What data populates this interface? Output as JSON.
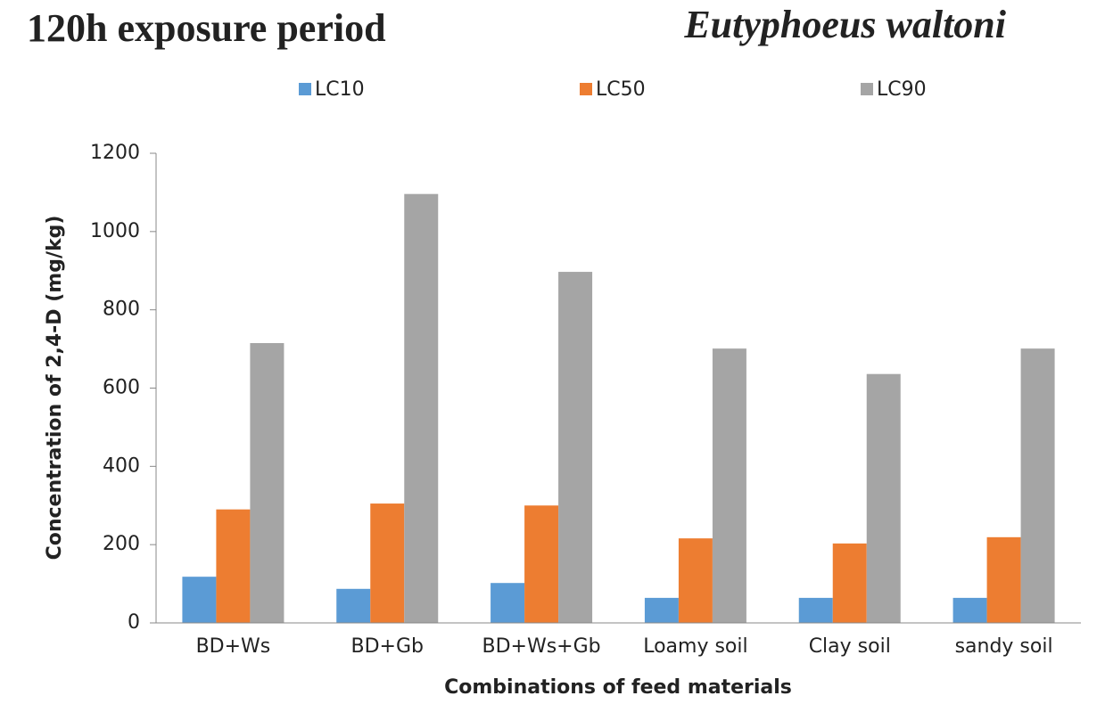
{
  "chart_data": {
    "type": "bar",
    "title": "120h exposure period",
    "subtitle": "Eutyphoeus waltoni",
    "x_label": "Combinations of feed materials",
    "y_label": "Concentration of 2,4-D (mg/kg)",
    "categories": [
      "BD+Ws",
      "BD+Gb",
      "BD+Ws+Gb",
      "Loamy soil",
      "Clay soil",
      "sandy soil"
    ],
    "series": [
      {
        "name": "LC10",
        "color": "#5b9bd5",
        "values": [
          118,
          87,
          102,
          64,
          64,
          64
        ]
      },
      {
        "name": "LC50",
        "color": "#ed7d31",
        "values": [
          290,
          305,
          300,
          216,
          203,
          219
        ]
      },
      {
        "name": "LC90",
        "color": "#a5a5a5",
        "values": [
          715,
          1096,
          897,
          701,
          636,
          701
        ]
      }
    ],
    "ylim": [
      0,
      1200
    ],
    "yticks": [
      0,
      200,
      400,
      600,
      800,
      1000,
      1200
    ],
    "grid": false,
    "legend": "top"
  }
}
